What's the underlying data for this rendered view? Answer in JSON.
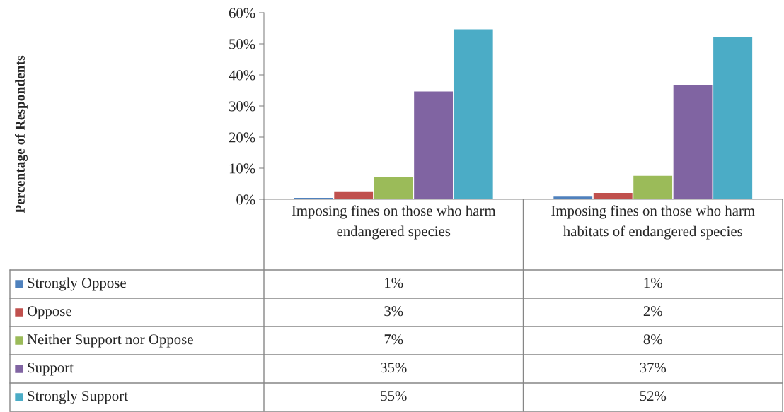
{
  "chart_data": {
    "type": "bar",
    "annotations": [
      "Percentage of Respondents"
    ],
    "categories": [
      "Imposing fines on those who harm endangered species",
      "Imposing fines on those who harm habitats of endangered species"
    ],
    "series": [
      {
        "name": "Strongly Oppose",
        "color": "#4f81bd",
        "values": [
          0.6,
          1
        ],
        "value_labels": [
          "1%",
          "1%"
        ]
      },
      {
        "name": "Oppose",
        "color": "#c0504d",
        "values": [
          2.7,
          2.2
        ],
        "value_labels": [
          "3%",
          "2%"
        ]
      },
      {
        "name": "Neither Support nor Oppose",
        "color": "#9bbb59",
        "values": [
          7.3,
          7.7
        ],
        "value_labels": [
          "7%",
          "8%"
        ]
      },
      {
        "name": "Support",
        "color": "#8064a2",
        "values": [
          34.8,
          37
        ],
        "value_labels": [
          "35%",
          "37%"
        ]
      },
      {
        "name": "Strongly Support",
        "color": "#4bacc6",
        "values": [
          54.8,
          52.2
        ],
        "value_labels": [
          "55%",
          "52%"
        ]
      }
    ],
    "ylim": [
      0,
      60
    ],
    "yticks": [
      {
        "value": 0,
        "label": "0%"
      },
      {
        "value": 10,
        "label": "10%"
      },
      {
        "value": 20,
        "label": "20%"
      },
      {
        "value": 30,
        "label": "30%"
      },
      {
        "value": 40,
        "label": "40%"
      },
      {
        "value": 50,
        "label": "50%"
      },
      {
        "value": 60,
        "label": "60%"
      }
    ],
    "legend": "bottom"
  }
}
